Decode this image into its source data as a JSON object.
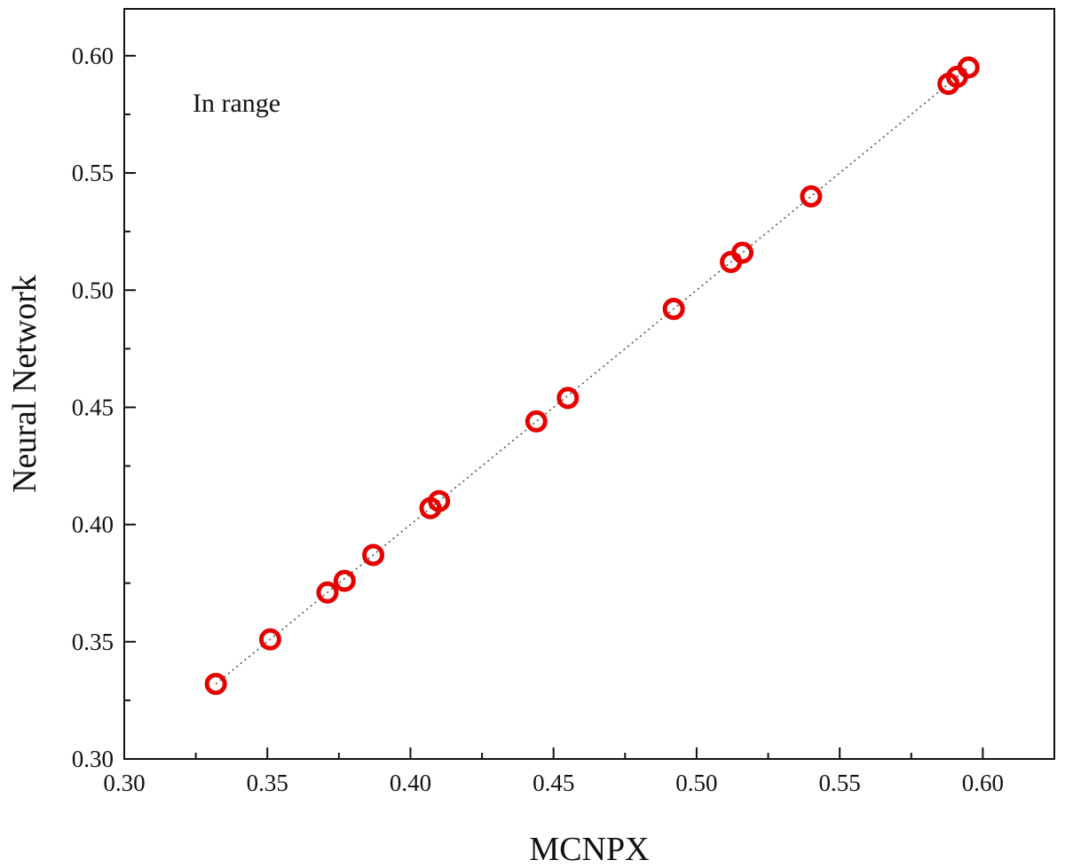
{
  "chart_data": {
    "type": "scatter",
    "title": "",
    "xlabel": "MCNPX",
    "ylabel": "Neural Network",
    "annotation": "In range",
    "xlim": [
      0.3,
      0.625
    ],
    "ylim": [
      0.3,
      0.62
    ],
    "xticks": [
      "0.30",
      "0.35",
      "0.40",
      "0.45",
      "0.50",
      "0.55",
      "0.60"
    ],
    "yticks": [
      "0.30",
      "0.35",
      "0.40",
      "0.45",
      "0.50",
      "0.55",
      "0.60"
    ],
    "grid": false,
    "marker_color": "#e60000",
    "reference_line": {
      "style": "dotted",
      "from": [
        0.332,
        0.332
      ],
      "to": [
        0.595,
        0.595
      ]
    },
    "series": [
      {
        "name": "In range",
        "points": [
          [
            0.332,
            0.332
          ],
          [
            0.351,
            0.351
          ],
          [
            0.371,
            0.371
          ],
          [
            0.377,
            0.376
          ],
          [
            0.387,
            0.387
          ],
          [
            0.407,
            0.407
          ],
          [
            0.41,
            0.41
          ],
          [
            0.444,
            0.444
          ],
          [
            0.455,
            0.454
          ],
          [
            0.492,
            0.492
          ],
          [
            0.512,
            0.512
          ],
          [
            0.516,
            0.516
          ],
          [
            0.54,
            0.54
          ],
          [
            0.588,
            0.588
          ],
          [
            0.591,
            0.591
          ],
          [
            0.595,
            0.595
          ]
        ]
      }
    ]
  }
}
